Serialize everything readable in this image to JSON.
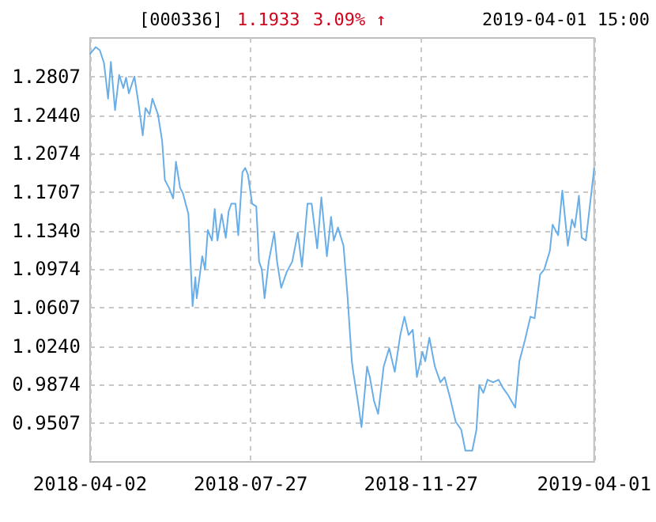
{
  "chart_data": {
    "type": "line",
    "title": "[000336]",
    "annotations": [
      "1.1933",
      "3.09% ↑",
      "2019-04-01 15:00"
    ],
    "x": [
      "2018-04-02",
      "2018-04-06",
      "2018-04-09",
      "2018-04-12",
      "2018-04-15",
      "2018-04-17",
      "2018-04-20",
      "2018-04-23",
      "2018-04-26",
      "2018-04-28",
      "2018-04-30",
      "2018-05-04",
      "2018-05-07",
      "2018-05-10",
      "2018-05-12",
      "2018-05-15",
      "2018-05-17",
      "2018-05-21",
      "2018-05-24",
      "2018-05-26",
      "2018-05-29",
      "2018-06-01",
      "2018-06-03",
      "2018-06-06",
      "2018-06-08",
      "2018-06-12",
      "2018-06-15",
      "2018-06-17",
      "2018-06-18",
      "2018-06-20",
      "2018-06-22",
      "2018-06-24",
      "2018-06-26",
      "2018-06-29",
      "2018-07-01",
      "2018-07-03",
      "2018-07-06",
      "2018-07-09",
      "2018-07-11",
      "2018-07-13",
      "2018-07-16",
      "2018-07-18",
      "2018-07-21",
      "2018-07-23",
      "2018-07-25",
      "2018-07-28",
      "2018-07-31",
      "2018-08-02",
      "2018-08-04",
      "2018-08-06",
      "2018-08-09",
      "2018-08-13",
      "2018-08-15",
      "2018-08-18",
      "2018-08-22",
      "2018-08-26",
      "2018-08-30",
      "2018-09-02",
      "2018-09-06",
      "2018-09-09",
      "2018-09-13",
      "2018-09-16",
      "2018-09-20",
      "2018-09-23",
      "2018-09-25",
      "2018-09-28",
      "2018-10-02",
      "2018-10-05",
      "2018-10-08",
      "2018-10-09",
      "2018-10-12",
      "2018-10-15",
      "2018-10-19",
      "2018-10-21",
      "2018-10-24",
      "2018-10-27",
      "2018-10-31",
      "2018-11-04",
      "2018-11-08",
      "2018-11-12",
      "2018-11-15",
      "2018-11-18",
      "2018-11-21",
      "2018-11-24",
      "2018-11-28",
      "2018-11-30",
      "2018-12-03",
      "2018-12-07",
      "2018-12-11",
      "2018-12-14",
      "2018-12-18",
      "2018-12-22",
      "2018-12-26",
      "2018-12-29",
      "2019-01-03",
      "2019-01-06",
      "2019-01-08",
      "2019-01-11",
      "2019-01-14",
      "2019-01-18",
      "2019-01-22",
      "2019-01-25",
      "2019-01-29",
      "2019-02-03",
      "2019-02-06",
      "2019-02-10",
      "2019-02-14",
      "2019-02-17",
      "2019-02-21",
      "2019-02-24",
      "2019-02-28",
      "2019-03-02",
      "2019-03-06",
      "2019-03-09",
      "2019-03-13",
      "2019-03-16",
      "2019-03-18",
      "2019-03-21",
      "2019-03-23",
      "2019-03-26",
      "2019-04-01"
    ],
    "series": [
      {
        "color": "#6aaee8",
        "values": [
          1.3022,
          1.3087,
          1.3057,
          1.2937,
          1.2597,
          1.2947,
          1.2487,
          1.2822,
          1.2697,
          1.2797,
          1.2647,
          1.2807,
          1.2547,
          1.2247,
          1.2507,
          1.2447,
          1.2597,
          1.2447,
          1.2197,
          1.1822,
          1.1747,
          1.1647,
          1.1997,
          1.1747,
          1.1697,
          1.1497,
          1.0622,
          1.0897,
          1.0697,
          1.0897,
          1.1097,
          1.0972,
          1.1347,
          1.1247,
          1.1547,
          1.1247,
          1.1497,
          1.1272,
          1.1522,
          1.1597,
          1.1597,
          1.1297,
          1.1897,
          1.1937,
          1.1872,
          1.1597,
          1.1572,
          1.1047,
          1.0972,
          1.0697,
          1.1047,
          1.1322,
          1.1047,
          1.0797,
          1.0947,
          1.1047,
          1.1322,
          1.0997,
          1.1597,
          1.1597,
          1.1172,
          1.1657,
          1.1097,
          1.1472,
          1.1247,
          1.1372,
          1.1197,
          1.0697,
          1.0097,
          0.9997,
          0.9747,
          0.9472,
          1.0047,
          0.9947,
          0.9722,
          0.9597,
          1.0047,
          1.0222,
          0.9997,
          1.0347,
          1.0522,
          1.0347,
          1.0397,
          0.9947,
          1.0187,
          1.0097,
          1.0322,
          1.0047,
          0.9897,
          0.9947,
          0.9747,
          0.9522,
          0.9447,
          0.9247,
          0.9247,
          0.9447,
          0.9872,
          0.9797,
          0.9922,
          0.9897,
          0.9922,
          0.9847,
          0.9772,
          0.9657,
          1.0097,
          1.0297,
          1.0522,
          1.0507,
          1.0922,
          1.0972,
          1.1147,
          1.1397,
          1.1297,
          1.1722,
          1.1197,
          1.1447,
          1.1372,
          1.1672,
          1.1272,
          1.1247,
          1.1933
        ]
      }
    ],
    "xlim": [
      "2018-04-02",
      "2019-04-01"
    ],
    "xticks": [
      "2018-04-02",
      "2018-07-27",
      "2018-11-27",
      "2019-04-01"
    ],
    "ylim": [
      0.914,
      1.3174
    ],
    "yticks": [
      0.9507,
      0.9874,
      {
        "value": 1.024,
        "label": "1.0240"
      },
      1.0607,
      1.0974,
      {
        "value": 1.134,
        "label": "1.1340"
      },
      1.1707,
      1.2074,
      {
        "value": 1.244,
        "label": "1.2440"
      },
      1.2807
    ],
    "grid": true,
    "marker": "none",
    "line_style": "solid"
  }
}
